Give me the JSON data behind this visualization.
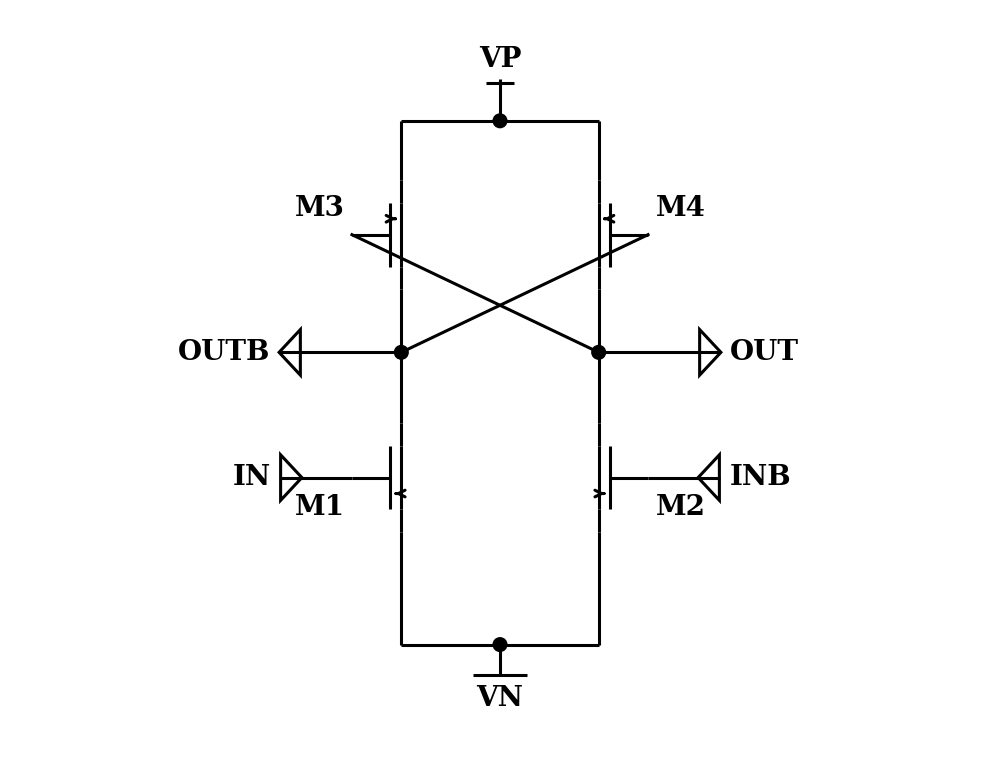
{
  "bg_color": "#ffffff",
  "line_color": "#000000",
  "lw": 2.2,
  "figsize": [
    10.0,
    7.73
  ],
  "dpi": 100,
  "vp_label": "VP",
  "vn_label": "VN",
  "m1_label": "M1",
  "m2_label": "M2",
  "m3_label": "M3",
  "m4_label": "M4",
  "outb_label": "OUTB",
  "out_label": "OUT",
  "in_label": "IN",
  "inb_label": "INB",
  "font_size": 16,
  "label_font_size": 20
}
